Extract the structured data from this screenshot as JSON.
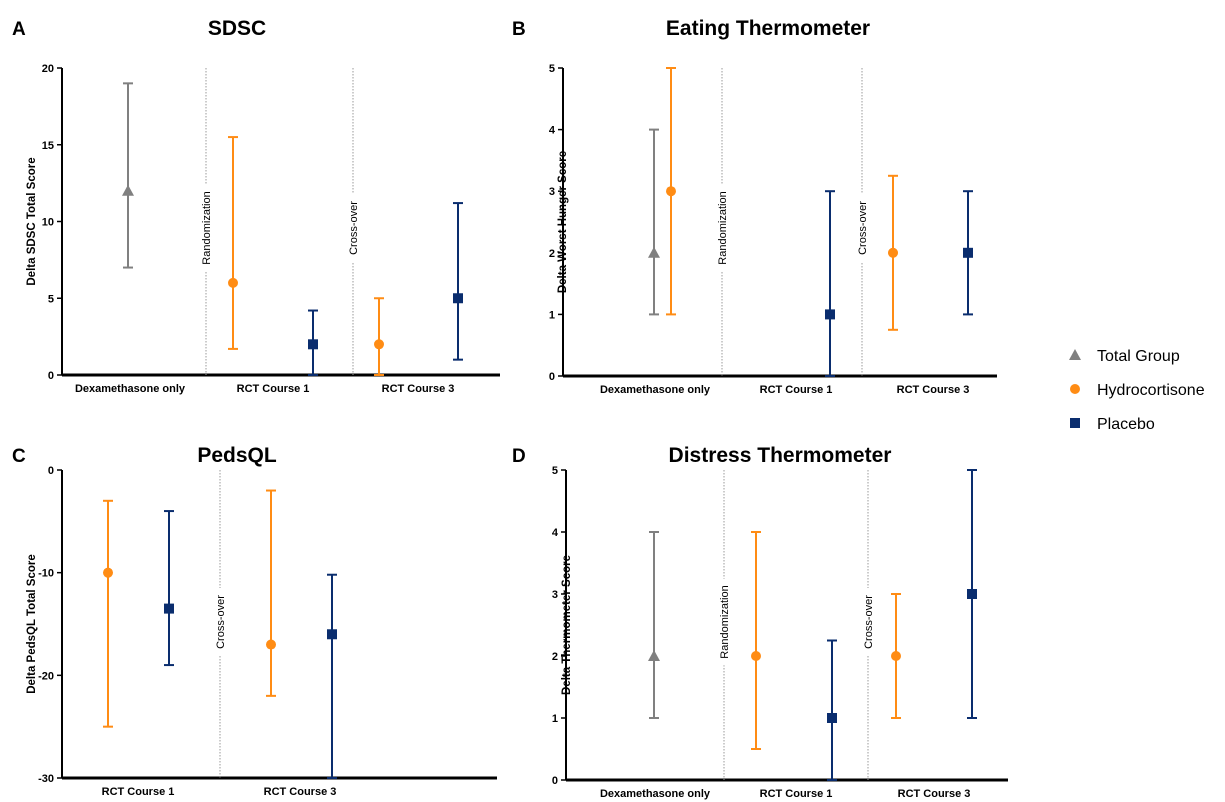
{
  "colors": {
    "total_group": "#808080",
    "hydrocortisone": "#FF8C14",
    "placebo": "#0A2D6E",
    "axis": "#000000",
    "separator": "#999999"
  },
  "legend": {
    "items": [
      {
        "label": "Total Group",
        "shape": "triangle",
        "color_key": "total_group"
      },
      {
        "label": "Hydrocortisone",
        "shape": "circle",
        "color_key": "hydrocortisone"
      },
      {
        "label": "Placebo",
        "shape": "square",
        "color_key": "placebo"
      }
    ]
  },
  "chart_data": [
    {
      "panel": "A",
      "type": "scatter",
      "title": "SDSC",
      "ylabel": "Delta SDSC Total Score",
      "ylim": [
        0,
        20
      ],
      "yticks": [
        0,
        5,
        10,
        15,
        20
      ],
      "categories": [
        "Dexamethasone only",
        "RCT Course 1",
        "RCT Course 3"
      ],
      "separators": [
        {
          "label": "Randomization"
        },
        {
          "label": "Cross-over"
        }
      ],
      "points": [
        {
          "series": "total_group",
          "category": 0,
          "value": 12,
          "low": 7,
          "high": 19
        },
        {
          "series": "hydrocortisone",
          "category": 1,
          "value": 6,
          "low": 1.7,
          "high": 15.5
        },
        {
          "series": "placebo",
          "category": 1,
          "value": 2,
          "low": 0,
          "high": 4.2
        },
        {
          "series": "hydrocortisone",
          "category": 2,
          "value": 2,
          "low": 0,
          "high": 5
        },
        {
          "series": "placebo",
          "category": 2,
          "value": 5,
          "low": 1,
          "high": 11.2
        }
      ]
    },
    {
      "panel": "B",
      "type": "scatter",
      "title": "Eating Thermometer",
      "ylabel": "Delta Worst Hunger Score",
      "ylim": [
        0,
        5
      ],
      "yticks": [
        0,
        1,
        2,
        3,
        4,
        5
      ],
      "categories": [
        "Dexamethasone only",
        "RCT Course 1",
        "RCT Course 3"
      ],
      "separators": [
        {
          "label": "Randomization"
        },
        {
          "label": "Cross-over"
        }
      ],
      "points": [
        {
          "series": "total_group",
          "category": 0,
          "value": 2,
          "low": 1,
          "high": 4
        },
        {
          "series": "hydrocortisone",
          "category": 1,
          "value": 3,
          "low": 1,
          "high": 5
        },
        {
          "series": "placebo",
          "category": 1,
          "value": 1,
          "low": 0,
          "high": 3
        },
        {
          "series": "hydrocortisone",
          "category": 2,
          "value": 2,
          "low": 0.75,
          "high": 3.25
        },
        {
          "series": "placebo",
          "category": 2,
          "value": 2,
          "low": 1,
          "high": 3
        }
      ]
    },
    {
      "panel": "C",
      "type": "scatter",
      "title": "PedsQL",
      "ylabel": "Delta PedsQL Total  Score",
      "ylim": [
        -30,
        0
      ],
      "yticks": [
        -30,
        -20,
        -10,
        0
      ],
      "categories": [
        "RCT Course 1",
        "RCT Course 3"
      ],
      "separators": [
        {
          "label": "Cross-over"
        }
      ],
      "points": [
        {
          "series": "hydrocortisone",
          "category": 0,
          "value": -10,
          "low": -25,
          "high": -3
        },
        {
          "series": "placebo",
          "category": 0,
          "value": -13.5,
          "low": -19,
          "high": -4
        },
        {
          "series": "hydrocortisone",
          "category": 1,
          "value": -17,
          "low": -22,
          "high": -2
        },
        {
          "series": "placebo",
          "category": 1,
          "value": -16,
          "low": -30,
          "high": -10.2
        }
      ]
    },
    {
      "panel": "D",
      "type": "scatter",
      "title": "Distress Thermometer",
      "ylabel": "Delta Thermometer Score",
      "ylim": [
        0,
        5
      ],
      "yticks": [
        0,
        1,
        2,
        3,
        4,
        5
      ],
      "categories": [
        "Dexamethasone only",
        "RCT Course 1",
        "RCT Course 3"
      ],
      "separators": [
        {
          "label": "Randomization"
        },
        {
          "label": "Cross-over"
        }
      ],
      "points": [
        {
          "series": "total_group",
          "category": 0,
          "value": 2,
          "low": 1,
          "high": 4
        },
        {
          "series": "hydrocortisone",
          "category": 1,
          "value": 2,
          "low": 0.5,
          "high": 4
        },
        {
          "series": "placebo",
          "category": 1,
          "value": 1,
          "low": 0,
          "high": 2.25
        },
        {
          "series": "hydrocortisone",
          "category": 2,
          "value": 2,
          "low": 1,
          "high": 3
        },
        {
          "series": "placebo",
          "category": 2,
          "value": 3,
          "low": 1,
          "high": 5
        }
      ]
    }
  ]
}
